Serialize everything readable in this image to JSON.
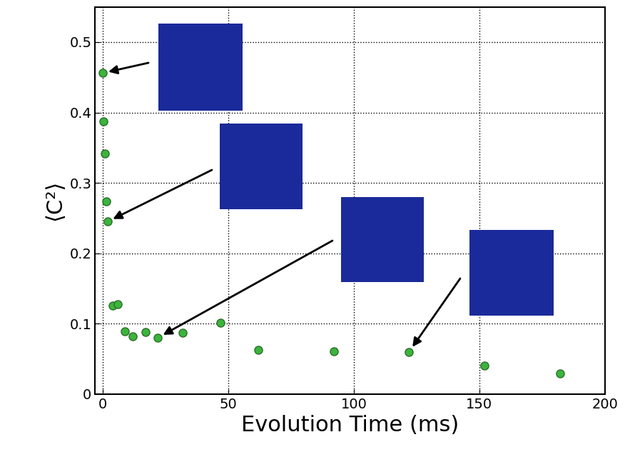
{
  "chart_data": {
    "type": "scatter",
    "x_label": "Evolution Time (ms)",
    "y_label": "⟨C²⟩",
    "x": [
      0,
      0.5,
      1,
      1.5,
      2,
      4,
      6,
      9,
      12,
      17,
      22,
      32,
      47,
      62,
      92,
      122,
      152,
      182
    ],
    "values": [
      0.456,
      0.387,
      0.342,
      0.274,
      0.245,
      0.126,
      0.128,
      0.089,
      0.082,
      0.088,
      0.08,
      0.087,
      0.101,
      0.063,
      0.061,
      0.06,
      0.04,
      0.029
    ],
    "color": "#3cb43c",
    "marker": "o",
    "xlim": [
      -3,
      200
    ],
    "ylim": [
      0,
      0.55
    ],
    "xticks": [
      0,
      50,
      100,
      150,
      200
    ],
    "yticks": [
      0,
      0.1,
      0.2,
      0.3,
      0.4,
      0.5
    ],
    "grid": true
  }
}
